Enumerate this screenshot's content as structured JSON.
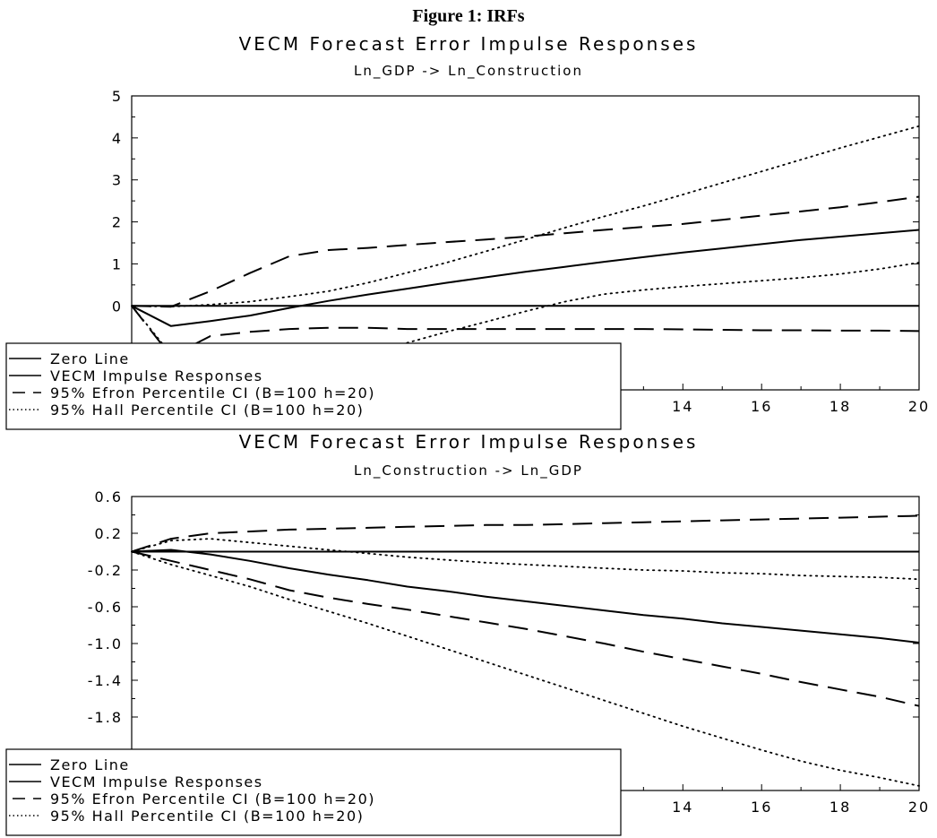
{
  "figure_title": "Figure 1: IRFs",
  "chart_data": [
    {
      "type": "line",
      "title": "VECM Forecast Error Impulse Responses",
      "subtitle": "Ln_GDP -> Ln_Construction",
      "xlim": [
        0,
        20
      ],
      "ylim": [
        -2,
        5
      ],
      "y_ticks": [
        0,
        1,
        2,
        3,
        4,
        5
      ],
      "y_tick_labels": [
        "0",
        "1",
        "2",
        "3",
        "4",
        "5"
      ],
      "x_ticks": [
        14,
        16,
        18,
        20
      ],
      "x_tick_labels": [
        "14",
        "16",
        "18",
        "20"
      ],
      "x": [
        0,
        1,
        2,
        3,
        4,
        5,
        6,
        7,
        8,
        9,
        10,
        11,
        12,
        13,
        14,
        15,
        16,
        17,
        18,
        19,
        20
      ],
      "series": [
        {
          "name": "Zero Line",
          "style": "solid",
          "values": [
            0,
            0,
            0,
            0,
            0,
            0,
            0,
            0,
            0,
            0,
            0,
            0,
            0,
            0,
            0,
            0,
            0,
            0,
            0,
            0,
            0
          ]
        },
        {
          "name": "VECM Impulse Responses",
          "style": "solid",
          "values": [
            0,
            -0.48,
            -0.36,
            -0.23,
            -0.05,
            0.12,
            0.27,
            0.41,
            0.55,
            0.68,
            0.81,
            0.93,
            1.05,
            1.16,
            1.27,
            1.37,
            1.47,
            1.57,
            1.65,
            1.73,
            1.81
          ]
        },
        {
          "name": "95% Efron Percentile CI (B=100 h=20)",
          "style": "dashed",
          "values": [
            0,
            -1.2,
            -0.72,
            -0.62,
            -0.55,
            -0.52,
            -0.52,
            -0.55,
            -0.55,
            -0.55,
            -0.55,
            -0.55,
            -0.55,
            -0.55,
            -0.56,
            -0.57,
            -0.58,
            -0.58,
            -0.59,
            -0.59,
            -0.6
          ]
        },
        {
          "name": "95% Efron Percentile CI (B=100 h=20)",
          "style": "dashed",
          "values": [
            0,
            -0.02,
            0.35,
            0.78,
            1.18,
            1.33,
            1.38,
            1.45,
            1.52,
            1.58,
            1.65,
            1.73,
            1.81,
            1.88,
            1.95,
            2.05,
            2.15,
            2.25,
            2.35,
            2.47,
            2.6
          ]
        },
        {
          "name": "95% Hall Percentile CI (B=100 h=20)",
          "style": "dotted",
          "values": [
            0,
            -0.02,
            0.03,
            0.1,
            0.22,
            0.35,
            0.55,
            0.79,
            1.03,
            1.3,
            1.58,
            1.86,
            2.13,
            2.38,
            2.65,
            2.93,
            3.2,
            3.48,
            3.76,
            4.02,
            4.28
          ]
        },
        {
          "name": "95% Hall Percentile CI (B=100 h=20)",
          "style": "dotted",
          "values": [
            0,
            -1.15,
            -1.4,
            -1.55,
            -1.45,
            -1.3,
            -1.1,
            -0.88,
            -0.62,
            -0.38,
            -0.13,
            0.1,
            0.28,
            0.38,
            0.46,
            0.53,
            0.6,
            0.67,
            0.76,
            0.88,
            1.03
          ]
        }
      ],
      "legend": [
        "Zero Line",
        "VECM Impulse Responses",
        "95% Efron Percentile CI (B=100 h=20)",
        "95% Hall Percentile CI (B=100 h=20)"
      ],
      "legend_position": "bottom-left"
    },
    {
      "type": "line",
      "title": "VECM Forecast Error Impulse Responses",
      "subtitle": "Ln_Construction -> Ln_GDP",
      "xlim": [
        0,
        20
      ],
      "ylim": [
        -2.6,
        0.6
      ],
      "y_ticks": [
        0.6,
        0.2,
        -0.2,
        -0.6,
        -1.0,
        -1.4,
        -1.8
      ],
      "y_tick_labels": [
        "0.6",
        "0.2",
        "-0.2",
        "-0.6",
        "-1.0",
        "-1.4",
        "-1.8"
      ],
      "x_ticks": [
        14,
        16,
        18,
        20
      ],
      "x_tick_labels": [
        "14",
        "16",
        "18",
        "20"
      ],
      "x": [
        0,
        1,
        2,
        3,
        4,
        5,
        6,
        7,
        8,
        9,
        10,
        11,
        12,
        13,
        14,
        15,
        16,
        17,
        18,
        19,
        20
      ],
      "series": [
        {
          "name": "Zero Line",
          "style": "solid",
          "values": [
            0,
            0,
            0,
            0,
            0,
            0,
            0,
            0,
            0,
            0,
            0,
            0,
            0,
            0,
            0,
            0,
            0,
            0,
            0,
            0,
            0
          ]
        },
        {
          "name": "VECM Impulse Responses",
          "style": "solid",
          "values": [
            0,
            0.02,
            -0.03,
            -0.1,
            -0.18,
            -0.25,
            -0.31,
            -0.38,
            -0.43,
            -0.49,
            -0.54,
            -0.59,
            -0.64,
            -0.69,
            -0.73,
            -0.78,
            -0.82,
            -0.86,
            -0.9,
            -0.94,
            -0.99
          ]
        },
        {
          "name": "95% Efron Percentile CI (B=100 h=20)",
          "style": "dashed",
          "values": [
            0,
            -0.1,
            -0.2,
            -0.3,
            -0.42,
            -0.5,
            -0.57,
            -0.63,
            -0.7,
            -0.77,
            -0.84,
            -0.92,
            -1.0,
            -1.09,
            -1.17,
            -1.25,
            -1.33,
            -1.42,
            -1.5,
            -1.58,
            -1.68
          ]
        },
        {
          "name": "95% Efron Percentile CI (B=100 h=20)",
          "style": "dashed",
          "values": [
            0,
            0.14,
            0.2,
            0.22,
            0.24,
            0.25,
            0.26,
            0.27,
            0.28,
            0.29,
            0.29,
            0.3,
            0.31,
            0.32,
            0.33,
            0.34,
            0.35,
            0.36,
            0.37,
            0.38,
            0.39
          ]
        },
        {
          "name": "95% Hall Percentile CI (B=100 h=20)",
          "style": "dotted",
          "values": [
            0,
            0.12,
            0.14,
            0.1,
            0.06,
            0.02,
            -0.02,
            -0.06,
            -0.09,
            -0.12,
            -0.14,
            -0.16,
            -0.18,
            -0.2,
            -0.21,
            -0.23,
            -0.24,
            -0.26,
            -0.27,
            -0.28,
            -0.3
          ]
        },
        {
          "name": "95% Hall Percentile CI (B=100 h=20)",
          "style": "dotted",
          "values": [
            0,
            -0.14,
            -0.26,
            -0.38,
            -0.52,
            -0.65,
            -0.78,
            -0.92,
            -1.06,
            -1.2,
            -1.34,
            -1.48,
            -1.62,
            -1.76,
            -1.9,
            -2.03,
            -2.16,
            -2.28,
            -2.38,
            -2.46,
            -2.55
          ]
        }
      ],
      "legend": [
        "Zero Line",
        "VECM Impulse Responses",
        "95% Efron Percentile CI (B=100 h=20)",
        "95% Hall Percentile CI (B=100 h=20)"
      ],
      "legend_position": "bottom-left"
    }
  ]
}
